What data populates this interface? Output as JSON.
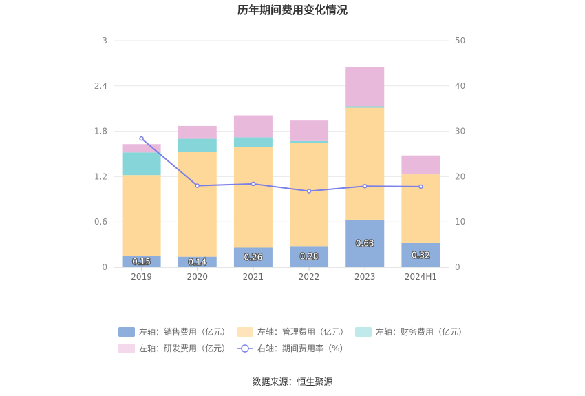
{
  "chart_data": {
    "type": "bar",
    "title": "历年期间费用变化情况",
    "categories": [
      "2019",
      "2020",
      "2021",
      "2022",
      "2023",
      "2024H1"
    ],
    "left_axis": {
      "ylim": [
        0,
        3
      ],
      "ticks": [
        "0",
        "0.6",
        "1.2",
        "1.8",
        "2.4",
        "3"
      ],
      "tick_values": [
        0,
        0.6,
        1.2,
        1.8,
        2.4,
        3
      ]
    },
    "right_axis": {
      "ylim": [
        0,
        50
      ],
      "ticks": [
        "0",
        "10",
        "20",
        "30",
        "40",
        "50"
      ],
      "tick_values": [
        0,
        10,
        20,
        30,
        40,
        50
      ]
    },
    "series": [
      {
        "name": "左轴：销售费用（亿元）",
        "kind": "bar",
        "stack": "left",
        "color": "#8eaedc",
        "values": [
          0.15,
          0.14,
          0.26,
          0.28,
          0.63,
          0.32
        ],
        "labels": [
          "0.15",
          "0.14",
          "0.26",
          "0.28",
          "0.63",
          "0.32"
        ]
      },
      {
        "name": "左轴：管理费用（亿元）",
        "kind": "bar",
        "stack": "left",
        "color": "#fed898",
        "values": [
          1.07,
          1.39,
          1.33,
          1.37,
          1.48,
          0.91
        ]
      },
      {
        "name": "左轴：财务费用（亿元）",
        "kind": "bar",
        "stack": "left",
        "color": "#85d5d9",
        "values": [
          0.3,
          0.17,
          0.13,
          0.02,
          0.02,
          0.0
        ]
      },
      {
        "name": "左轴：研发费用（亿元）",
        "kind": "bar",
        "stack": "left",
        "color": "#e9b9dc",
        "values": [
          0.11,
          0.17,
          0.29,
          0.28,
          0.52,
          0.25
        ]
      },
      {
        "name": "右轴：期间费用率（%）",
        "kind": "line",
        "axis": "right",
        "color": "#7b7fe8",
        "values": [
          28.4,
          18.0,
          18.4,
          16.8,
          17.9,
          17.8
        ]
      }
    ],
    "legend_position": "bottom",
    "grid": true
  },
  "source": "数据来源：恒生聚源",
  "colors": {
    "axis": "#cccccc",
    "grid": "#e8e8e8",
    "legend_bar_1": "#8eaedc",
    "legend_bar_2": "#ffe3bb",
    "legend_bar_3": "#bfe9eb",
    "legend_bar_4": "#f4d9ec"
  }
}
